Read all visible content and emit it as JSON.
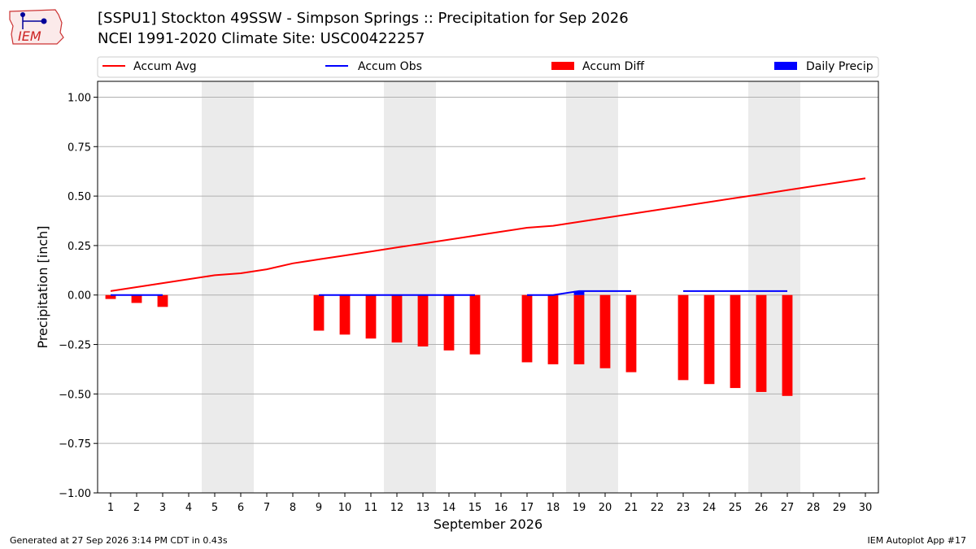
{
  "header": {
    "title_line1": "[SSPU1] Stockton 49SSW - Simpson Springs :: Precipitation for Sep 2026",
    "title_line2": "NCEI 1991-2020 Climate Site: USC00422257",
    "logo_text": "IEM"
  },
  "footer": {
    "generated": "Generated at 27 Sep 2026 3:14 PM CDT in 0.43s",
    "app": "IEM Autoplot App #17"
  },
  "colors": {
    "accum_avg": "#ff0000",
    "accum_obs": "#0000ff",
    "accum_diff": "#ff0000",
    "daily_precip": "#0000ff",
    "weekend_shade": "#ebebeb",
    "grid": "#b0b0b0"
  },
  "chart_data": {
    "type": "bar",
    "title": "[SSPU1] Stockton 49SSW - Simpson Springs :: Precipitation for Sep 2026",
    "subtitle": "NCEI 1991-2020 Climate Site: USC00422257",
    "xlabel": "September 2026",
    "ylabel": "Precipitation [inch]",
    "xlim": [
      0.5,
      30.5
    ],
    "ylim": [
      -1.0,
      1.08
    ],
    "yticks": [
      -1.0,
      -0.75,
      -0.5,
      -0.25,
      0.0,
      0.25,
      0.5,
      0.75,
      1.0
    ],
    "ytick_labels": [
      "−1.00",
      "−0.75",
      "−0.50",
      "−0.25",
      "0.00",
      "0.25",
      "0.50",
      "0.75",
      "1.00"
    ],
    "xticks": [
      1,
      2,
      3,
      4,
      5,
      6,
      7,
      8,
      9,
      10,
      11,
      12,
      13,
      14,
      15,
      16,
      17,
      18,
      19,
      20,
      21,
      22,
      23,
      24,
      25,
      26,
      27,
      28,
      29,
      30
    ],
    "grid": "horizontal",
    "legend_placement": "top",
    "legend": [
      "Accum Avg",
      "Accum Obs",
      "Accum Diff",
      "Daily Precip"
    ],
    "shaded_weekends": [
      [
        5,
        6
      ],
      [
        12,
        13
      ],
      [
        19,
        20
      ],
      [
        26,
        27
      ]
    ],
    "accum_avg": {
      "x": [
        1,
        2,
        3,
        4,
        5,
        6,
        7,
        8,
        9,
        10,
        11,
        12,
        13,
        14,
        15,
        16,
        17,
        18,
        19,
        20,
        21,
        22,
        23,
        24,
        25,
        26,
        27,
        28,
        29,
        30
      ],
      "y": [
        0.02,
        0.04,
        0.06,
        0.08,
        0.1,
        0.11,
        0.13,
        0.16,
        0.18,
        0.2,
        0.22,
        0.24,
        0.26,
        0.28,
        0.3,
        0.32,
        0.34,
        0.35,
        0.37,
        0.39,
        0.41,
        0.43,
        0.45,
        0.47,
        0.49,
        0.51,
        0.53,
        0.55,
        0.57,
        0.59
      ]
    },
    "accum_obs": {
      "segments": [
        {
          "x": [
            1,
            2,
            3
          ],
          "y": [
            0.0,
            0.0,
            0.0
          ]
        },
        {
          "x": [
            9,
            10,
            11,
            12,
            13,
            14,
            15
          ],
          "y": [
            0.0,
            0.0,
            0.0,
            0.0,
            0.0,
            0.0,
            0.0
          ]
        },
        {
          "x": [
            17,
            18,
            19,
            20,
            21
          ],
          "y": [
            0.0,
            0.0,
            0.02,
            0.02,
            0.02
          ]
        },
        {
          "x": [
            23,
            24,
            25,
            26,
            27
          ],
          "y": [
            0.02,
            0.02,
            0.02,
            0.02,
            0.02
          ]
        }
      ]
    },
    "accum_diff": {
      "x": [
        1,
        2,
        3,
        9,
        10,
        11,
        12,
        13,
        14,
        15,
        17,
        18,
        19,
        20,
        21,
        23,
        24,
        25,
        26,
        27
      ],
      "y": [
        -0.02,
        -0.04,
        -0.06,
        -0.18,
        -0.2,
        -0.22,
        -0.24,
        -0.26,
        -0.28,
        -0.3,
        -0.34,
        -0.35,
        -0.35,
        -0.37,
        -0.39,
        -0.43,
        -0.45,
        -0.47,
        -0.49,
        -0.51
      ]
    },
    "daily_precip": {
      "x": [
        19
      ],
      "y": [
        0.02
      ]
    }
  }
}
